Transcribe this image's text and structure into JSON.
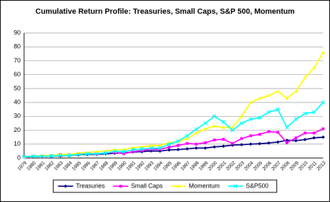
{
  "chart_data": {
    "type": "line",
    "title": "Cumulative Return Profile: Treasuries, Small Caps, S&P 500, Momentum",
    "categories": [
      "1979",
      "1980",
      "1981",
      "1982",
      "1983",
      "1984",
      "1985",
      "1986",
      "1987",
      "1988",
      "1989",
      "1990",
      "1991",
      "1992",
      "1993",
      "1994",
      "1995",
      "1996",
      "1997",
      "1998",
      "1999",
      "2000",
      "2001",
      "2002",
      "2003",
      "2004",
      "2005",
      "2006",
      "2007",
      "2008",
      "2009",
      "2010",
      "2011",
      "2012"
    ],
    "ylim": [
      0,
      90
    ],
    "yticks": [
      0,
      10,
      20,
      30,
      40,
      50,
      60,
      70,
      80,
      90
    ],
    "grid": true,
    "legend": "bottom",
    "series": [
      {
        "name": "Treasuries",
        "color": "#000080",
        "marker": "diamond",
        "values": [
          1,
          1.1,
          1.2,
          1.5,
          1.6,
          1.9,
          2.3,
          2.6,
          2.7,
          3,
          3.4,
          3.7,
          4.3,
          4.6,
          5.1,
          5,
          5.8,
          6.1,
          6.6,
          7.2,
          7.2,
          8,
          8.5,
          9.3,
          9.6,
          10,
          10.3,
          10.8,
          11.5,
          12.8,
          12.5,
          13.3,
          14.5,
          15
        ]
      },
      {
        "name": "Small Caps",
        "color": "#ff00ff",
        "marker": "square",
        "values": [
          1,
          1.3,
          1.4,
          1.8,
          2.5,
          2.4,
          3,
          3.2,
          3,
          3.6,
          4,
          3.2,
          4.6,
          5.4,
          6.3,
          6.2,
          7.8,
          9,
          10.5,
          10,
          11,
          13,
          13.5,
          10.5,
          14,
          16,
          17,
          19,
          18.5,
          11,
          14.5,
          18,
          18,
          21
        ]
      },
      {
        "name": "Momentum",
        "color": "#ffff00",
        "marker": "triangle",
        "values": [
          1,
          1.4,
          1.6,
          2,
          2.5,
          2.7,
          3.5,
          4,
          4.5,
          5,
          6,
          6,
          7.5,
          8,
          9,
          9,
          11,
          12,
          14,
          18,
          21,
          23,
          22,
          22,
          30,
          40,
          43,
          45,
          48,
          43,
          48,
          58,
          65,
          76
        ]
      },
      {
        "name": "S&P500",
        "color": "#00ffff",
        "marker": "x",
        "values": [
          1,
          1.3,
          1.2,
          1.5,
          1.8,
          1.9,
          2.5,
          3,
          3.1,
          3.6,
          4.8,
          4.6,
          6,
          6.5,
          7.1,
          7.2,
          9.9,
          12.2,
          16,
          20.7,
          25,
          30,
          26,
          20,
          25,
          28,
          29,
          33,
          35,
          22,
          28,
          32,
          33,
          40
        ]
      }
    ]
  }
}
